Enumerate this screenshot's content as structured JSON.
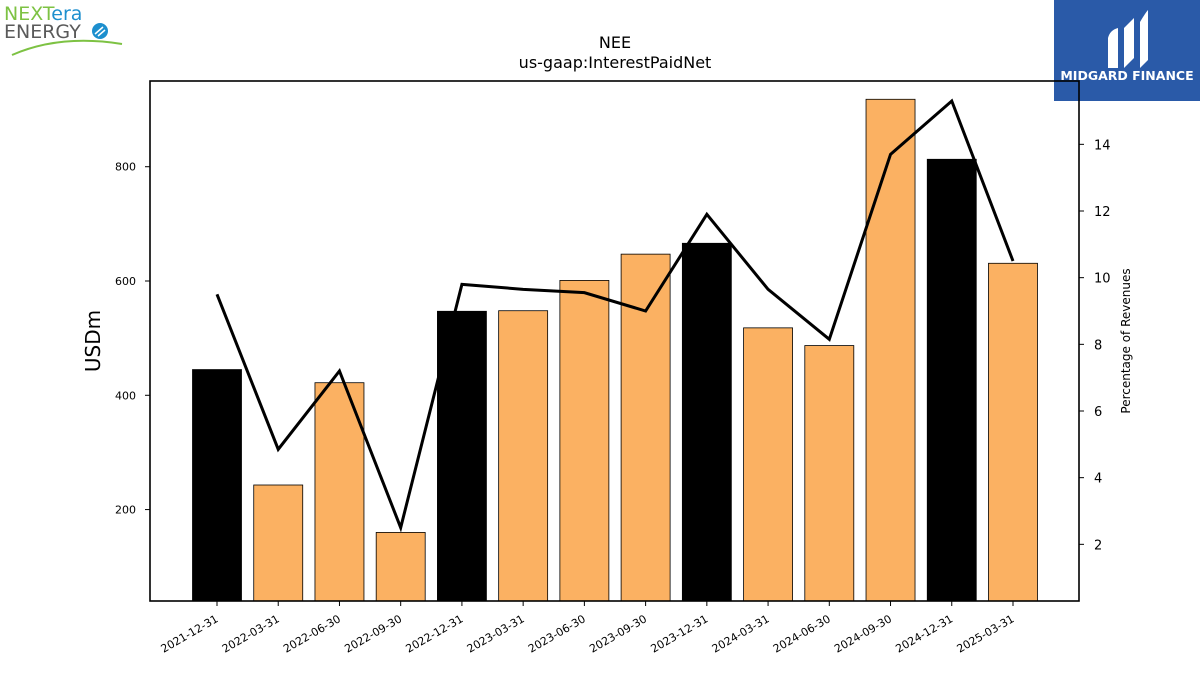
{
  "logo_left": {
    "line1_a": "NEXT",
    "line1_b": "era",
    "line2": "ENERGY"
  },
  "logo_right": {
    "text": "MIDGARD FINANCE"
  },
  "colors": {
    "annual_bar": "#000000",
    "quarterly_bar": "#fbb162",
    "line": "#000000",
    "logo_green": "#7dc243",
    "logo_blue": "#1d8fce",
    "logo_gray": "#5a5a5a",
    "midgard_bg": "#2a5aa8"
  },
  "chart_data": {
    "type": "bar",
    "title": "NEE",
    "subtitle": "us-gaap:InterestPaidNet",
    "ylabel": "USDm",
    "y2label": "Percentage of Revenues",
    "categories": [
      "2021-12-31",
      "2022-03-31",
      "2022-06-30",
      "2022-09-30",
      "2022-12-31",
      "2023-03-31",
      "2023-06-30",
      "2023-09-30",
      "2023-12-31",
      "2024-03-31",
      "2024-06-30",
      "2024-09-30",
      "2024-12-31",
      "2025-03-31"
    ],
    "series": [
      {
        "type": "bar",
        "values": [
          445,
          243,
          422,
          160,
          547,
          548,
          601,
          647,
          666,
          518,
          487,
          918,
          813,
          631
        ],
        "period": [
          "annual",
          "quarter",
          "quarter",
          "quarter",
          "annual",
          "quarter",
          "quarter",
          "quarter",
          "annual",
          "quarter",
          "quarter",
          "quarter",
          "annual",
          "quarter"
        ]
      },
      {
        "type": "line",
        "axis": "right",
        "values": [
          9.5,
          4.85,
          7.2,
          2.5,
          9.8,
          9.65,
          9.55,
          9.0,
          11.9,
          9.65,
          8.15,
          13.7,
          15.3,
          10.5
        ]
      }
    ],
    "ylim": [
      40,
      950
    ],
    "yticks": [
      200,
      400,
      600,
      800
    ],
    "y2lim": [
      0.3,
      15.9
    ],
    "y2ticks": [
      2,
      4,
      6,
      8,
      10,
      12,
      14
    ],
    "grid": false
  }
}
